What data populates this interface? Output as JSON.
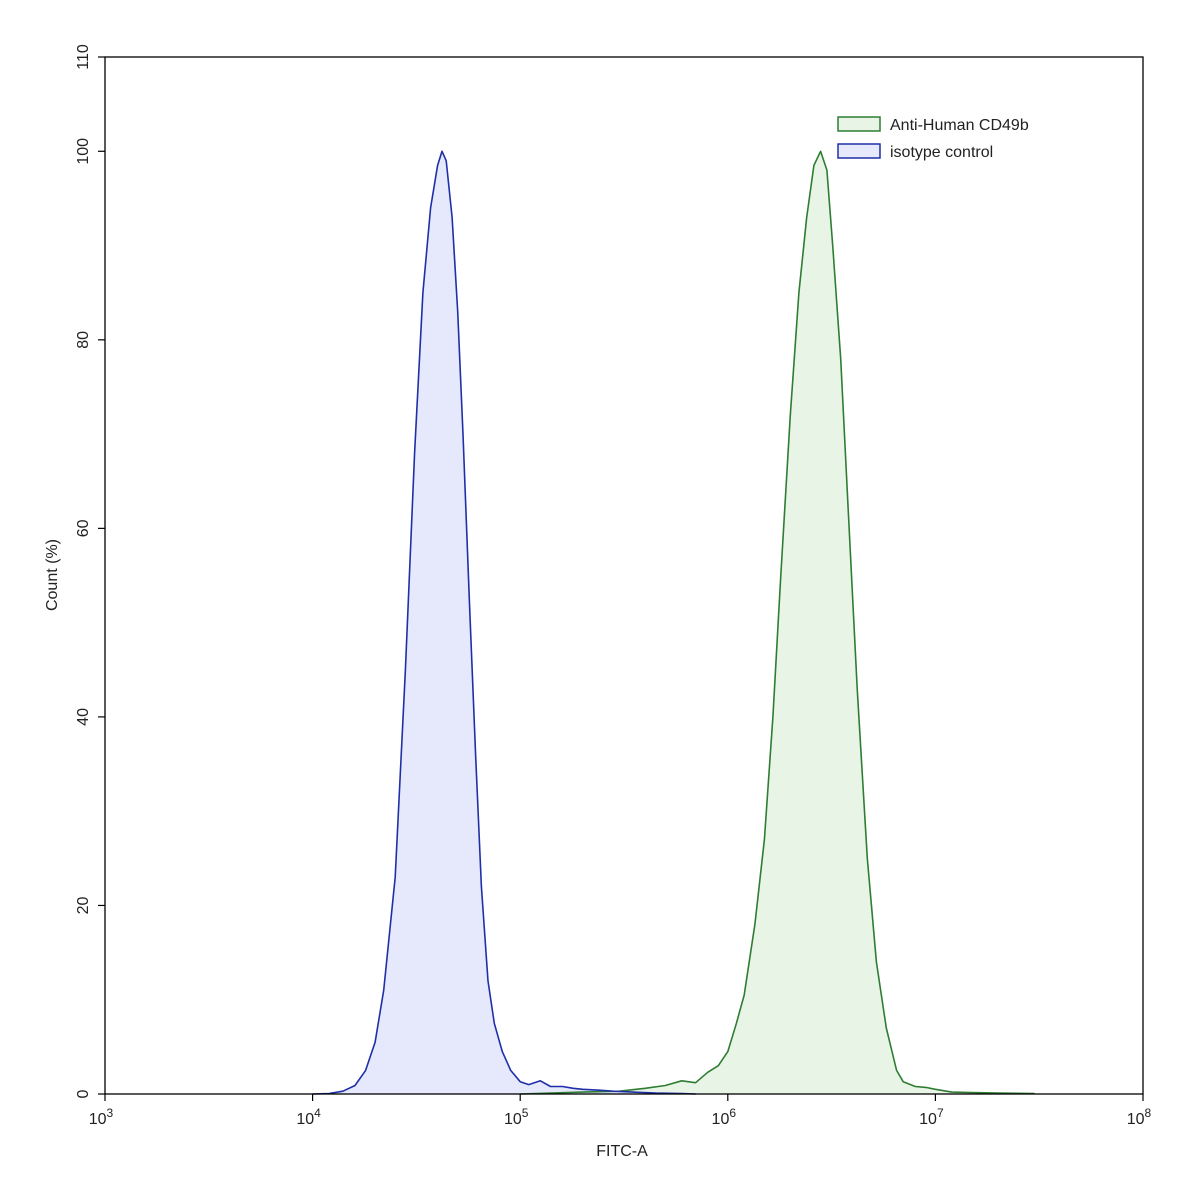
{
  "chart_data": {
    "type": "area",
    "xlabel": "FITC-A",
    "ylabel": "Count  (%)",
    "x_scale": "log",
    "xlim": [
      1000,
      100000000
    ],
    "ylim": [
      0,
      110
    ],
    "x_ticks": [
      {
        "value": 1000,
        "base": "10",
        "exp": "3"
      },
      {
        "value": 10000,
        "base": "10",
        "exp": "4"
      },
      {
        "value": 100000,
        "base": "10",
        "exp": "5"
      },
      {
        "value": 1000000,
        "base": "10",
        "exp": "6"
      },
      {
        "value": 10000000,
        "base": "10",
        "exp": "7"
      },
      {
        "value": 100000000,
        "base": "10",
        "exp": "8"
      }
    ],
    "y_ticks": [
      0,
      20,
      40,
      60,
      80,
      100,
      110
    ],
    "grid": false,
    "legend_position": "top-right",
    "series": [
      {
        "name": "Anti-Human CD49b",
        "line_color": "#2e7d32",
        "fill_color": "#e8f4e6",
        "points": [
          [
            100000,
            0
          ],
          [
            200000,
            0.2
          ],
          [
            300000,
            0.3
          ],
          [
            400000,
            0.6
          ],
          [
            500000,
            0.9
          ],
          [
            600000,
            1.4
          ],
          [
            700000,
            1.2
          ],
          [
            800000,
            2.3
          ],
          [
            900000,
            3.0
          ],
          [
            1000000,
            4.5
          ],
          [
            1100000,
            7.5
          ],
          [
            1200000,
            10.5
          ],
          [
            1350000,
            18
          ],
          [
            1500000,
            27
          ],
          [
            1650000,
            40
          ],
          [
            1800000,
            55
          ],
          [
            2000000,
            72
          ],
          [
            2200000,
            85
          ],
          [
            2400000,
            93
          ],
          [
            2600000,
            98.5
          ],
          [
            2800000,
            100
          ],
          [
            3000000,
            98
          ],
          [
            3200000,
            90
          ],
          [
            3500000,
            78
          ],
          [
            3800000,
            62
          ],
          [
            4200000,
            43
          ],
          [
            4700000,
            25
          ],
          [
            5200000,
            14
          ],
          [
            5800000,
            7
          ],
          [
            6500000,
            2.5
          ],
          [
            7000000,
            1.3
          ],
          [
            8000000,
            0.8
          ],
          [
            9000000,
            0.7
          ],
          [
            10000000,
            0.5
          ],
          [
            12000000,
            0.2
          ],
          [
            15000000,
            0.15
          ],
          [
            20000000,
            0.1
          ],
          [
            30000000,
            0.05
          ]
        ]
      },
      {
        "name": "isotype control",
        "line_color": "#1f2fa8",
        "fill_color": "#e6e8fb",
        "points": [
          [
            10000,
            0
          ],
          [
            12000,
            0.05
          ],
          [
            14000,
            0.3
          ],
          [
            16000,
            0.9
          ],
          [
            18000,
            2.5
          ],
          [
            20000,
            5.5
          ],
          [
            22000,
            11
          ],
          [
            25000,
            23
          ],
          [
            28000,
            45
          ],
          [
            31000,
            68
          ],
          [
            34000,
            85
          ],
          [
            37000,
            94
          ],
          [
            40000,
            98.5
          ],
          [
            42000,
            100
          ],
          [
            44000,
            99
          ],
          [
            47000,
            93
          ],
          [
            50000,
            83
          ],
          [
            53000,
            70
          ],
          [
            57000,
            52
          ],
          [
            61000,
            36
          ],
          [
            65000,
            22
          ],
          [
            70000,
            12
          ],
          [
            75000,
            7.5
          ],
          [
            82000,
            4.5
          ],
          [
            90000,
            2.5
          ],
          [
            100000,
            1.3
          ],
          [
            110000,
            1.0
          ],
          [
            125000,
            1.4
          ],
          [
            140000,
            0.8
          ],
          [
            160000,
            0.8
          ],
          [
            180000,
            0.6
          ],
          [
            200000,
            0.5
          ],
          [
            240000,
            0.4
          ],
          [
            280000,
            0.3
          ],
          [
            350000,
            0.2
          ],
          [
            450000,
            0.1
          ],
          [
            600000,
            0.05
          ],
          [
            700000,
            0
          ]
        ]
      }
    ]
  }
}
